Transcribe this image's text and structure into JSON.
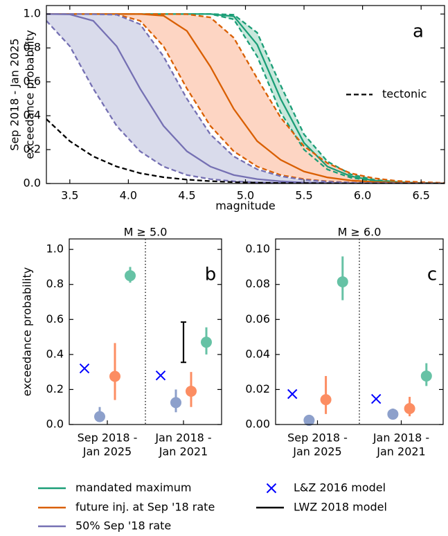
{
  "chart_data": [
    {
      "type": "line",
      "panel_label": "a",
      "ylabel": [
        "Sep 2018 - Jan 2025",
        "exceedance probability"
      ],
      "xlabel": "magnitude",
      "x": [
        3.3,
        3.5,
        3.7,
        3.9,
        4.1,
        4.3,
        4.5,
        4.7,
        4.9,
        5.1,
        5.3,
        5.5,
        5.7,
        5.9,
        6.1,
        6.3,
        6.5,
        6.7
      ],
      "xlim": [
        3.3,
        6.7
      ],
      "ylim": [
        0,
        1.05
      ],
      "xticks": [
        3.5,
        {
          "value": 4,
          "label": "4.0"
        },
        4.5,
        {
          "value": 5,
          "label": "5.0"
        },
        5.5,
        {
          "value": 6,
          "label": "6.0"
        },
        6.5
      ],
      "yticks": [
        {
          "value": 0,
          "label": "0.0"
        },
        0.2,
        0.4,
        0.6,
        0.8,
        {
          "value": 1,
          "label": "1.0"
        }
      ],
      "legend_position": "center right",
      "series": [
        {
          "color": "#1b9e77",
          "style": "solid",
          "values": [
            1,
            1,
            1,
            1,
            1,
            1,
            1,
            1,
            0.987,
            0.82,
            0.5,
            0.24,
            0.1,
            0.043,
            0.017,
            0.007,
            0.003,
            0.001
          ]
        },
        {
          "color": "#1b9e77",
          "style": "dashed",
          "values": [
            1,
            1,
            1,
            1,
            1,
            1,
            1,
            1,
            0.969,
            0.75,
            0.42,
            0.2,
            0.083,
            0.034,
            0.014,
            0.005,
            0.002,
            0.001
          ]
        },
        {
          "color": "#1b9e77",
          "style": "dashed",
          "values": [
            1,
            1,
            1,
            1,
            1,
            1,
            1,
            1,
            0.996,
            0.89,
            0.58,
            0.29,
            0.13,
            0.054,
            0.022,
            0.009,
            0.003,
            0.001
          ]
        },
        {
          "color": "#d95f02",
          "style": "solid",
          "values": [
            1,
            1,
            1,
            1,
            1,
            0.99,
            0.9,
            0.69,
            0.44,
            0.25,
            0.14,
            0.071,
            0.036,
            0.018,
            0.009,
            0.005,
            0.002,
            0.001
          ]
        },
        {
          "color": "#d95f02",
          "style": "dashed",
          "values": [
            1,
            1,
            1,
            0.998,
            0.96,
            0.81,
            0.56,
            0.34,
            0.19,
            0.1,
            0.05,
            0.026,
            0.013,
            0.006,
            0.003,
            0.002,
            0.001,
            0
          ]
        },
        {
          "color": "#d95f02",
          "style": "dashed",
          "values": [
            1,
            1,
            1,
            1,
            1,
            1,
            0.999,
            0.98,
            0.86,
            0.62,
            0.39,
            0.22,
            0.12,
            0.06,
            0.031,
            0.015,
            0.008,
            0.004
          ]
        },
        {
          "color": "#7570b3",
          "style": "solid",
          "values": [
            1,
            0.998,
            0.96,
            0.81,
            0.56,
            0.34,
            0.19,
            0.1,
            0.05,
            0.026,
            0.013,
            0.006,
            0.003,
            0.002,
            0.001,
            0,
            0,
            0
          ]
        },
        {
          "color": "#7570b3",
          "style": "dashed",
          "values": [
            0.96,
            0.81,
            0.56,
            0.34,
            0.19,
            0.1,
            0.05,
            0.026,
            0.013,
            0.006,
            0.003,
            0.002,
            0.001,
            0,
            0,
            0,
            0,
            0
          ]
        },
        {
          "color": "#7570b3",
          "style": "dashed",
          "values": [
            1,
            1,
            0.999,
            0.996,
            0.94,
            0.75,
            0.5,
            0.29,
            0.16,
            0.084,
            0.043,
            0.022,
            0.011,
            0.005,
            0.003,
            0.002,
            0.001,
            0
          ]
        },
        {
          "name": "tectonic",
          "color": "#000000",
          "style": "dashed",
          "values": [
            0.38,
            0.25,
            0.16,
            0.1,
            0.061,
            0.037,
            0.023,
            0.014,
            0.008,
            0.005,
            0.003,
            0.002,
            0.001,
            0,
            0,
            0,
            0,
            0
          ]
        }
      ],
      "shaded_bands": [
        {
          "between": [
            1,
            2
          ],
          "color": "#c9e8dc"
        },
        {
          "between": [
            4,
            5
          ],
          "color": "#fdd5c3"
        },
        {
          "between": [
            7,
            8
          ],
          "color": "#d9dbeb"
        }
      ]
    },
    {
      "type": "errorbar",
      "panel_label": "b",
      "title": "M ≥ 5.0",
      "ylabel": "exceedance probability",
      "categories": [
        [
          "Sep 2018 -",
          "Jan 2025"
        ],
        [
          "Jan 2018 -",
          "Jan 2021"
        ]
      ],
      "ylim": [
        0,
        1.06
      ],
      "yticks": [
        {
          "value": 0,
          "label": "0.0"
        },
        0.2,
        0.4,
        0.6,
        0.8,
        {
          "value": 1,
          "label": "1.0"
        }
      ],
      "series": [
        {
          "marker": "x",
          "color": "#0000ff",
          "values": [
            0.32,
            0.28
          ]
        },
        {
          "marker": "o",
          "color": "#8da0cb",
          "values": [
            0.045,
            0.125
          ],
          "lower": [
            0.015,
            0.07
          ],
          "upper": [
            0.1,
            0.2
          ]
        },
        {
          "marker": "o",
          "color": "#fc8d62",
          "values": [
            0.275,
            0.19
          ],
          "lower": [
            0.14,
            0.1
          ],
          "upper": [
            0.465,
            0.3
          ]
        },
        {
          "marker": "o",
          "color": "#66c2a5",
          "values": [
            0.85,
            0.47
          ],
          "lower": [
            0.81,
            0.4
          ],
          "upper": [
            0.9,
            0.555
          ]
        },
        {
          "marker": "range",
          "color": "#000000",
          "lower": [
            null,
            0.355
          ],
          "upper": [
            null,
            0.585
          ]
        }
      ]
    },
    {
      "type": "errorbar",
      "panel_label": "c",
      "title": "M ≥ 6.0",
      "categories": [
        [
          "Sep 2018 -",
          "Jan 2025"
        ],
        [
          "Jan 2018 -",
          "Jan 2021"
        ]
      ],
      "ylim": [
        0,
        0.106
      ],
      "yticks": [
        {
          "value": 0,
          "label": "0.00"
        },
        0.02,
        0.04,
        0.06,
        0.08,
        {
          "value": 0.1,
          "label": "0.10"
        }
      ],
      "series": [
        {
          "marker": "x",
          "color": "#0000ff",
          "values": [
            0.0174,
            0.0146
          ]
        },
        {
          "marker": "o",
          "color": "#8da0cb",
          "values": [
            0.0024,
            0.0059
          ],
          "lower": [
            0.0012,
            0.0036
          ],
          "upper": [
            0.0045,
            0.0091
          ]
        },
        {
          "marker": "o",
          "color": "#fc8d62",
          "values": [
            0.0142,
            0.0091
          ],
          "lower": [
            0.006,
            0.0047
          ],
          "upper": [
            0.0277,
            0.0158
          ]
        },
        {
          "marker": "o",
          "color": "#66c2a5",
          "values": [
            0.0815,
            0.0277
          ],
          "lower": [
            0.071,
            0.022
          ],
          "upper": [
            0.096,
            0.035
          ]
        }
      ]
    }
  ],
  "legend": [
    {
      "label": "mandated maximum",
      "color": "#1b9e77",
      "marker": "line"
    },
    {
      "label": "future inj. at Sep '18 rate",
      "color": "#d95f02",
      "marker": "line"
    },
    {
      "label": "50% Sep '18 rate",
      "color": "#7570b3",
      "marker": "line"
    },
    {
      "label": "L&Z 2016 model",
      "color": "#0000ff",
      "marker": "x"
    },
    {
      "label": "LWZ 2018 model",
      "color": "#000000",
      "marker": "line"
    }
  ]
}
